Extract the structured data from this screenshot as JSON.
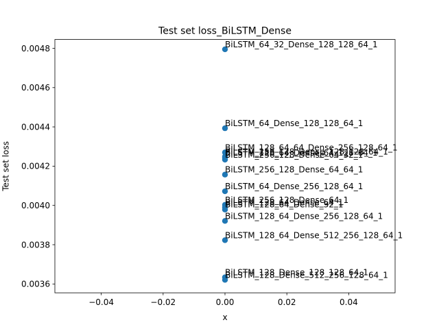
{
  "chart_data": {
    "type": "scatter",
    "title": "Test set loss_BiLSTM_Dense",
    "xlabel": "x",
    "ylabel": "Test set loss",
    "xlim": [
      -0.055,
      0.055
    ],
    "ylim": [
      0.003555,
      0.004845
    ],
    "xticks": [
      -0.04,
      -0.02,
      0.0,
      0.02,
      0.04
    ],
    "xtick_labels": [
      "−0.04",
      "−0.02",
      "0.00",
      "0.02",
      "0.04"
    ],
    "yticks": [
      0.0036,
      0.0038,
      0.004,
      0.0042,
      0.0044,
      0.0046,
      0.0048
    ],
    "ytick_labels": [
      "0.0036",
      "0.0038",
      "0.0040",
      "0.0042",
      "0.0044",
      "0.0046",
      "0.0048"
    ],
    "grid": false,
    "marker_color": "#1f77b4",
    "points": [
      {
        "label": "BiLSTM_64_32_Dense_128_128_64_1",
        "x": 0,
        "y": 0.004795
      },
      {
        "label": "BiLSTM_64_Dense_128_128_64_1",
        "x": 0,
        "y": 0.004393
      },
      {
        "label": "BiLSTM_128_64_64_Dense_256_128_64_1",
        "x": 0,
        "y": 0.00427
      },
      {
        "label": "BiLSTM_256_128_Dense_128_128_64_1",
        "x": 0,
        "y": 0.004249
      },
      {
        "label": "BiLSTM_128_64_Dense_64_128_64_1",
        "x": 0,
        "y": 0.004243
      },
      {
        "label": "BiLSTM_256_128_Dense_64_32_1",
        "x": 0,
        "y": 0.004233
      },
      {
        "label": "BiLSTM_256_128_Dense_64_64_1",
        "x": 0,
        "y": 0.004157
      },
      {
        "label": "BiLSTM_64_Dense_256_128_64_1",
        "x": 0,
        "y": 0.004072
      },
      {
        "label": "BiLSTM_256_128_Dense_64_1",
        "x": 0,
        "y": 0.004003
      },
      {
        "label": "BiLSTM_128_64_Dense_64_1",
        "x": 0,
        "y": 0.00399
      },
      {
        "label": "BiLSTM_128_64_Dense_32_1",
        "x": 0,
        "y": 0.003979
      },
      {
        "label": "BiLSTM_128_64_Dense_256_128_64_1",
        "x": 0,
        "y": 0.003921
      },
      {
        "label": "BiLSTM_128_64_Dense_512_256_128_64_1",
        "x": 0,
        "y": 0.003823
      },
      {
        "label": "BiLSTM_128_Dense_128_128_64_1",
        "x": 0,
        "y": 0.003634
      },
      {
        "label": "BiLSTM_128_Dense_512_256_128_64_1",
        "x": 0,
        "y": 0.003621
      }
    ]
  }
}
